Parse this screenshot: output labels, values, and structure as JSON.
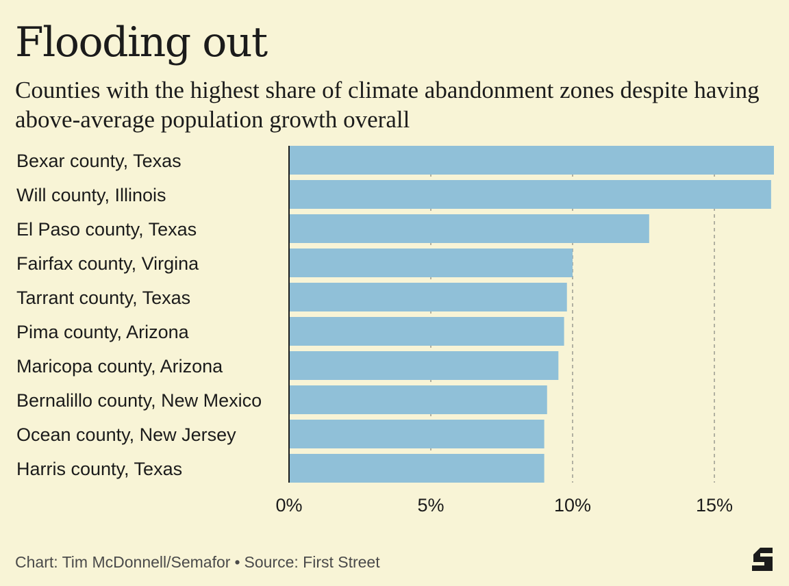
{
  "header": {
    "title": "Flooding out",
    "subtitle": "Counties with the highest share of climate abandonment zones despite having above-average population growth overall"
  },
  "footer": {
    "credit": "Chart: Tim McDonnell/Semafor",
    "separator": "•",
    "source": "Source: First Street"
  },
  "logo": {
    "icon": "semafor-logo-icon",
    "letter": "S"
  },
  "colors": {
    "background": "#f8f4d6",
    "bar": "#90c0d8",
    "gridline": "#9a9a90",
    "axis": "#1b1b1b",
    "text": "#1b1b1b"
  },
  "chart_data": {
    "type": "bar",
    "orientation": "horizontal",
    "categories": [
      "Bexar county, Texas",
      "Will county, Illinois",
      "El Paso county, Texas",
      "Fairfax county, Virgina",
      "Tarrant county, Texas",
      "Pima county, Arizona",
      "Maricopa county, Arizona",
      "Bernalillo county, New Mexico",
      "Ocean county, New Jersey",
      "Harris county, Texas"
    ],
    "values": [
      17.1,
      17.0,
      12.7,
      10.0,
      9.8,
      9.7,
      9.5,
      9.1,
      9.0,
      9.0
    ],
    "xlim": [
      0,
      17.1
    ],
    "xticks": [
      0,
      5,
      10,
      15
    ],
    "xtick_labels": [
      "0%",
      "5%",
      "10%",
      "15%"
    ],
    "grid": "vertical dashed",
    "legend": "none"
  }
}
